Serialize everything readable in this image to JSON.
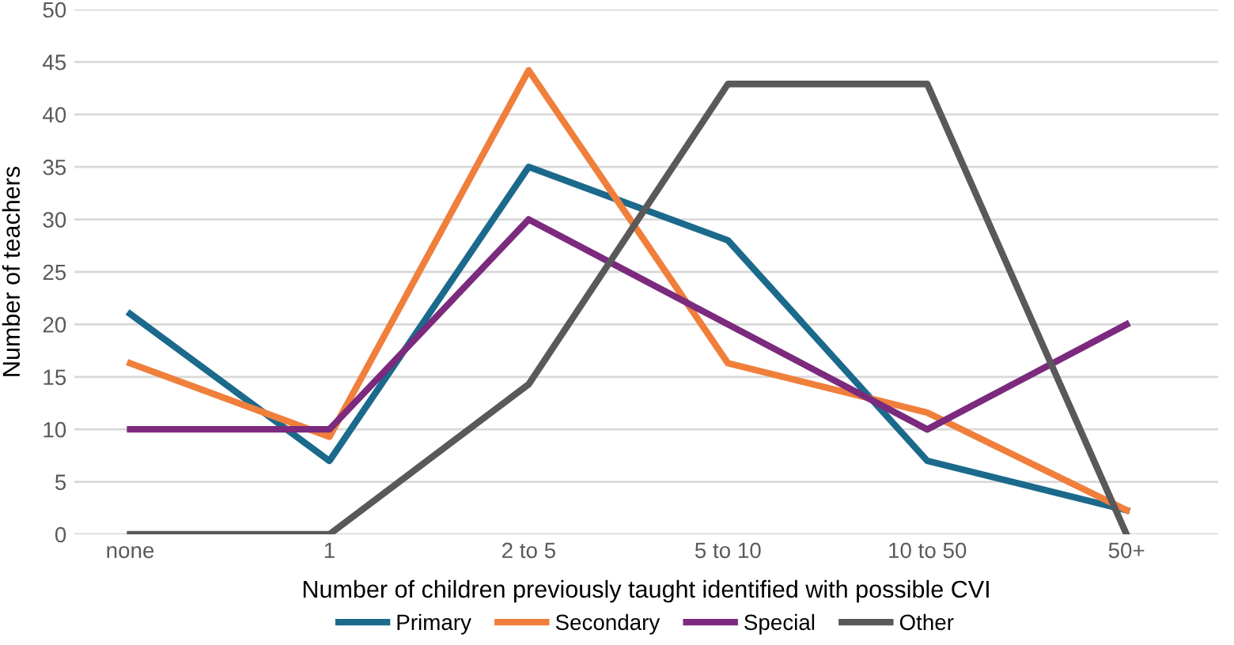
{
  "chart_data": {
    "type": "line",
    "xlabel": "Number of children previously taught identified with possible CVI",
    "ylabel": "Number of teachers",
    "categories": [
      "none",
      "1",
      "2 to 5",
      "5 to 10",
      "10 to 50",
      "50+"
    ],
    "series": [
      {
        "name": "Primary",
        "color": "#1b6a8c",
        "values": [
          21,
          7,
          35,
          28,
          7,
          2.3
        ]
      },
      {
        "name": "Secondary",
        "color": "#f07f3c",
        "values": [
          16.3,
          9.3,
          44.2,
          16.3,
          11.6,
          2.3
        ]
      },
      {
        "name": "Special",
        "color": "#7b2a7e",
        "values": [
          10,
          10,
          30,
          20,
          10,
          20
        ]
      },
      {
        "name": "Other",
        "color": "#595959",
        "values": [
          0,
          0,
          14.3,
          42.9,
          42.9,
          0
        ]
      }
    ],
    "ylim": [
      0,
      50
    ],
    "yticks": [
      0,
      5,
      10,
      15,
      20,
      25,
      30,
      35,
      40,
      45,
      50
    ],
    "grid": "y",
    "legend": "bottom",
    "marker": "none",
    "line_style": "solid"
  }
}
